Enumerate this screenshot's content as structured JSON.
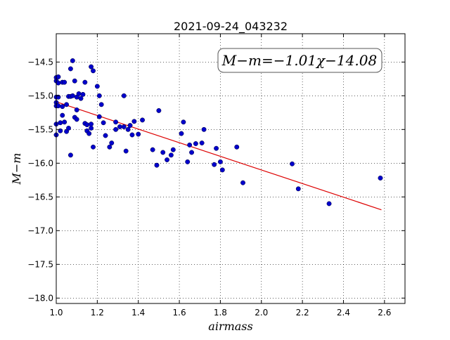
{
  "chart_data": {
    "type": "scatter",
    "title": "2021-09-24_043232",
    "xlabel": "airmass",
    "ylabel": "M−m",
    "xlim": [
      1.0,
      2.7
    ],
    "ylim": [
      -18.08,
      -14.08
    ],
    "y_inverted": true,
    "grid": true,
    "grid_style": "dotted",
    "x_ticks": [
      "1.0",
      "1.2",
      "1.4",
      "1.6",
      "1.8",
      "2.0",
      "2.2",
      "2.4",
      "2.6"
    ],
    "y_ticks": [
      "−14.5",
      "−15.0",
      "−15.5",
      "−16.0",
      "−16.5",
      "−17.0",
      "−17.5",
      "−18.0"
    ],
    "annotation": "M−m=−1.01χ−14.08",
    "annotation_position": "top-right",
    "point_color": "#0000cc",
    "fit_color": "#dd0000",
    "fit": {
      "slope": -1.01,
      "intercept": -14.08,
      "x_range": [
        1.0,
        2.585
      ]
    },
    "points": [
      [
        1.0,
        -14.73
      ],
      [
        1.0,
        -14.78
      ],
      [
        1.0,
        -15.02
      ],
      [
        1.0,
        -15.1
      ],
      [
        1.0,
        -15.15
      ],
      [
        1.0,
        -15.42
      ],
      [
        1.0,
        -15.58
      ],
      [
        1.01,
        -14.72
      ],
      [
        1.01,
        -14.81
      ],
      [
        1.01,
        -15.02
      ],
      [
        1.01,
        -15.15
      ],
      [
        1.02,
        -15.4
      ],
      [
        1.02,
        -15.52
      ],
      [
        1.03,
        -14.8
      ],
      [
        1.03,
        -15.16
      ],
      [
        1.03,
        -15.29
      ],
      [
        1.04,
        -14.8
      ],
      [
        1.04,
        -15.39
      ],
      [
        1.05,
        -15.53
      ],
      [
        1.05,
        -15.13
      ],
      [
        1.06,
        -15.48
      ],
      [
        1.06,
        -15.01
      ],
      [
        1.07,
        -15.01
      ],
      [
        1.07,
        -15.88
      ],
      [
        1.07,
        -14.6
      ],
      [
        1.08,
        -14.48
      ],
      [
        1.08,
        -15.0
      ],
      [
        1.09,
        -15.32
      ],
      [
        1.09,
        -14.78
      ],
      [
        1.1,
        -15.02
      ],
      [
        1.1,
        -15.21
      ],
      [
        1.1,
        -15.35
      ],
      [
        1.11,
        -14.97
      ],
      [
        1.12,
        -15.04
      ],
      [
        1.13,
        -14.98
      ],
      [
        1.14,
        -14.8
      ],
      [
        1.14,
        -15.41
      ],
      [
        1.15,
        -15.43
      ],
      [
        1.15,
        -15.52
      ],
      [
        1.16,
        -15.56
      ],
      [
        1.17,
        -15.42
      ],
      [
        1.17,
        -15.48
      ],
      [
        1.17,
        -14.57
      ],
      [
        1.18,
        -14.63
      ],
      [
        1.18,
        -15.76
      ],
      [
        1.2,
        -14.86
      ],
      [
        1.21,
        -15.0
      ],
      [
        1.21,
        -15.31
      ],
      [
        1.22,
        -15.13
      ],
      [
        1.23,
        -15.4
      ],
      [
        1.24,
        -15.59
      ],
      [
        1.26,
        -15.76
      ],
      [
        1.27,
        -15.7
      ],
      [
        1.29,
        -15.39
      ],
      [
        1.29,
        -15.5
      ],
      [
        1.31,
        -15.46
      ],
      [
        1.33,
        -15.0
      ],
      [
        1.33,
        -15.46
      ],
      [
        1.34,
        -15.82
      ],
      [
        1.35,
        -15.5
      ],
      [
        1.36,
        -15.44
      ],
      [
        1.37,
        -15.58
      ],
      [
        1.38,
        -15.38
      ],
      [
        1.4,
        -15.57
      ],
      [
        1.42,
        -15.36
      ],
      [
        1.47,
        -15.8
      ],
      [
        1.49,
        -16.03
      ],
      [
        1.5,
        -15.22
      ],
      [
        1.52,
        -15.84
      ],
      [
        1.54,
        -15.95
      ],
      [
        1.56,
        -15.88
      ],
      [
        1.57,
        -15.8
      ],
      [
        1.61,
        -15.56
      ],
      [
        1.62,
        -15.39
      ],
      [
        1.64,
        -15.98
      ],
      [
        1.65,
        -15.73
      ],
      [
        1.66,
        -15.84
      ],
      [
        1.68,
        -15.71
      ],
      [
        1.71,
        -15.7
      ],
      [
        1.72,
        -15.5
      ],
      [
        1.77,
        -16.02
      ],
      [
        1.78,
        -15.78
      ],
      [
        1.8,
        -15.98
      ],
      [
        1.81,
        -16.1
      ],
      [
        1.88,
        -15.76
      ],
      [
        1.91,
        -16.29
      ],
      [
        2.15,
        -16.01
      ],
      [
        2.18,
        -16.38
      ],
      [
        2.33,
        -16.6
      ],
      [
        2.58,
        -16.22
      ]
    ]
  }
}
